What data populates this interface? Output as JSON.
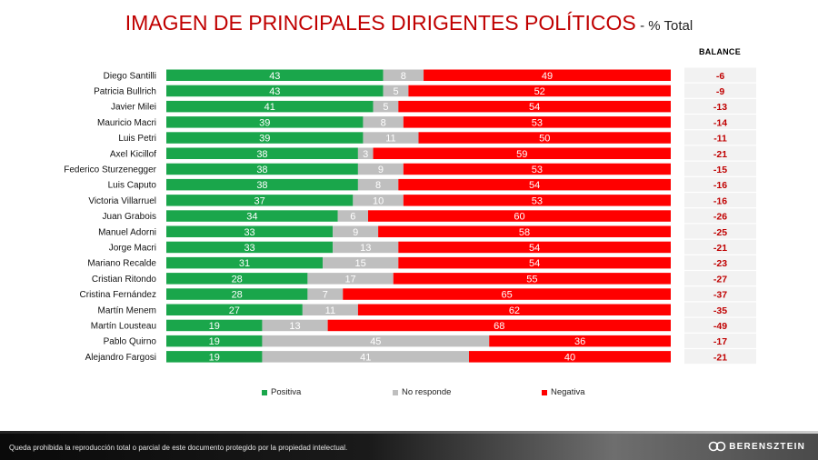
{
  "title": {
    "main": "IMAGEN DE PRINCIPALES DIRIGENTES POLÍTICOS",
    "sub": "- % Total"
  },
  "balance_header": "BALANCE",
  "colors": {
    "positiva": "#1aa64b",
    "no_responde": "#bfbfbf",
    "negativa": "#ff0000",
    "balance_text": "#c00000",
    "balance_bg": "#f2f2f2"
  },
  "chart_data": {
    "type": "bar",
    "orientation": "horizontal-stacked-100",
    "title": "IMAGEN DE PRINCIPALES DIRIGENTES POLÍTICOS - % Total",
    "categories": [
      "Diego Santilli",
      "Patricia Bullrich",
      "Javier Milei",
      "Mauricio Macri",
      "Luis Petri",
      "Axel Kicillof",
      "Federico Sturzenegger",
      "Luis Caputo",
      "Victoria Villarruel",
      "Juan Grabois",
      "Manuel Adorni",
      "Jorge Macri",
      "Mariano Recalde",
      "Cristian Ritondo",
      "Cristina Fernández",
      "Martín Menem",
      "Martín Lousteau",
      "Pablo Quirno",
      "Alejandro Fargosi"
    ],
    "series": [
      {
        "name": "Positiva",
        "values": [
          43,
          43,
          41,
          39,
          39,
          38,
          38,
          38,
          37,
          34,
          33,
          33,
          31,
          28,
          28,
          27,
          19,
          19,
          19
        ]
      },
      {
        "name": "No responde",
        "values": [
          8,
          5,
          5,
          8,
          11,
          3,
          9,
          8,
          10,
          6,
          9,
          13,
          15,
          17,
          7,
          11,
          13,
          45,
          41
        ]
      },
      {
        "name": "Negativa",
        "values": [
          49,
          52,
          54,
          53,
          50,
          59,
          53,
          54,
          53,
          60,
          58,
          54,
          54,
          55,
          65,
          62,
          68,
          36,
          40
        ]
      }
    ],
    "balance": [
      "-6",
      "-9",
      "-13",
      "-14",
      "-11",
      "-21",
      "-15",
      "-16",
      "-16",
      "-26",
      "-25",
      "-21",
      "-23",
      "-27",
      "-37",
      "-35",
      "-49",
      "-17",
      "-21"
    ],
    "xlim": [
      0,
      100
    ],
    "legend": "bottom"
  },
  "footer": {
    "disclaimer": "Queda prohibida la reproducción total o parcial de este documento protegido por la propiedad intelectual.",
    "brand": "BERENSZTEIN"
  }
}
